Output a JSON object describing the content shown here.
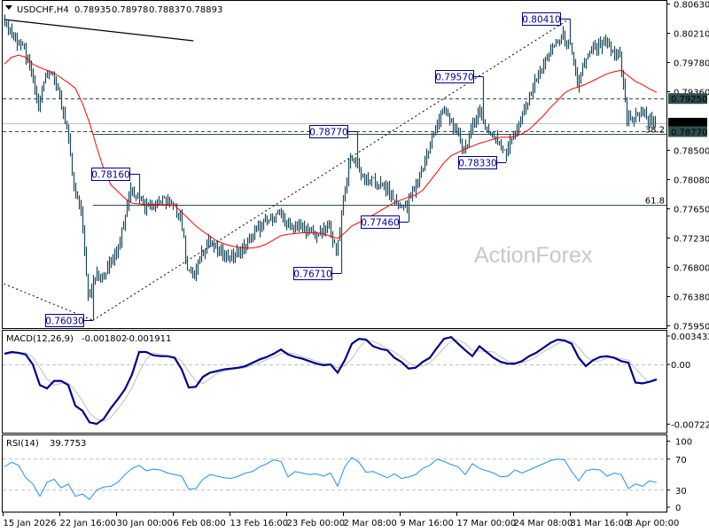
{
  "header": {
    "menu_icon": "triangle-down-icon",
    "symbol_timeframe": "USDCHF,H4",
    "open": "0.78935",
    "high": "0.78978",
    "low": "0.78837",
    "close": "0.78893"
  },
  "watermark": "ActionForex",
  "x_axis": {
    "ticks": [
      {
        "label": "15 Jan 2026",
        "date": "2026-01-15T00:00"
      },
      {
        "label": "22 Jan 16:00",
        "date": "2026-01-22T16:00"
      },
      {
        "label": "30 Jan 00:00",
        "date": "2026-01-30T00:00"
      },
      {
        "label": "6 Feb 08:00",
        "date": "2026-02-06T08:00"
      },
      {
        "label": "13 Feb 16:00",
        "date": "2026-02-13T16:00"
      },
      {
        "label": "23 Feb 00:00",
        "date": "2026-02-23T00:00"
      },
      {
        "label": "2 Mar 08:00",
        "date": "2026-03-02T08:00"
      },
      {
        "label": "9 Mar 16:00",
        "date": "2026-03-09T16:00"
      },
      {
        "label": "17 Mar 00:00",
        "date": "2026-03-17T00:00"
      },
      {
        "label": "24 Mar 08:00",
        "date": "2026-03-24T08:00"
      },
      {
        "label": "31 Mar 16:00",
        "date": "2026-03-31T16:00"
      },
      {
        "label": "8 Apr 00:00",
        "date": "2026-04-08T00:00"
      }
    ]
  },
  "chart_data": [
    {
      "type": "line",
      "title": "USDCHF,H4",
      "style": "ohlc-bars",
      "bar_color": "#1b4a5e",
      "ma_color": "#ff0000",
      "ylim": [
        0.7595,
        0.8063
      ],
      "y_ticks": [
        "0.80630",
        "0.80210",
        "0.79780",
        "0.79360",
        "0.78500",
        "0.78080",
        "0.77650",
        "0.77230",
        "0.76800",
        "0.76380",
        "0.75950"
      ],
      "price_badges": [
        {
          "label": "0.79250",
          "value": 0.7925,
          "color": "#2f4f4f"
        },
        {
          "label": "0.78893",
          "value": 0.78893,
          "color": "#000000"
        },
        {
          "label": "0.78770",
          "value": 0.7877,
          "color": "#2f4f4f"
        }
      ],
      "close_series": [
        0.804,
        0.8025,
        0.8008,
        0.7995,
        0.796,
        0.791,
        0.796,
        0.7965,
        0.7925,
        0.7885,
        0.779,
        0.7765,
        0.764,
        0.767,
        0.766,
        0.769,
        0.77,
        0.7745,
        0.7795,
        0.7785,
        0.777,
        0.7772,
        0.7775,
        0.7778,
        0.777,
        0.7755,
        0.768,
        0.7665,
        0.77,
        0.772,
        0.7705,
        0.77,
        0.7695,
        0.77,
        0.771,
        0.7725,
        0.7735,
        0.7745,
        0.7752,
        0.7758,
        0.7745,
        0.774,
        0.7738,
        0.7735,
        0.7728,
        0.773,
        0.774,
        0.77,
        0.778,
        0.784,
        0.783,
        0.7805,
        0.7805,
        0.78,
        0.7795,
        0.778,
        0.7765,
        0.7775,
        0.779,
        0.782,
        0.785,
        0.7885,
        0.7905,
        0.7895,
        0.7875,
        0.785,
        0.7875,
        0.791,
        0.7885,
        0.7872,
        0.786,
        0.785,
        0.787,
        0.789,
        0.792,
        0.795,
        0.7968,
        0.799,
        0.8005,
        0.8015,
        0.8,
        0.7945,
        0.7975,
        0.7995,
        0.8,
        0.8005,
        0.799,
        0.799,
        0.7895,
        0.7895,
        0.7905,
        0.7895,
        0.7889
      ],
      "moving_average": [
        0.7975,
        0.7985,
        0.7988,
        0.7985,
        0.7975,
        0.797,
        0.7966,
        0.7962,
        0.7955,
        0.7948,
        0.794,
        0.7918,
        0.789,
        0.7855,
        0.7823,
        0.78,
        0.779,
        0.778,
        0.7773,
        0.7772,
        0.7771,
        0.7771,
        0.7771,
        0.7771,
        0.777,
        0.776,
        0.775,
        0.774,
        0.7732,
        0.7725,
        0.7718,
        0.7714,
        0.7711,
        0.7709,
        0.7708,
        0.7708,
        0.771,
        0.7714,
        0.772,
        0.7726,
        0.7728,
        0.7729,
        0.773,
        0.773,
        0.773,
        0.7729,
        0.7725,
        0.7722,
        0.773,
        0.774,
        0.7745,
        0.775,
        0.7756,
        0.7762,
        0.7768,
        0.7774,
        0.7778,
        0.7782,
        0.7785,
        0.7792,
        0.7805,
        0.7818,
        0.7832,
        0.7842,
        0.7847,
        0.7852,
        0.7856,
        0.786,
        0.7863,
        0.7866,
        0.7869,
        0.7869,
        0.787,
        0.7874,
        0.788,
        0.789,
        0.79,
        0.7912,
        0.7922,
        0.7933,
        0.7939,
        0.7942,
        0.7946,
        0.7951,
        0.7956,
        0.7961,
        0.7964,
        0.7966,
        0.7958,
        0.795,
        0.7945,
        0.7939,
        0.7934
      ],
      "annotations": [
        {
          "label": "0.80410",
          "value": 0.8041,
          "date": "2026-03-31T16:00",
          "kind": "high",
          "side": "left"
        },
        {
          "label": "0.79570",
          "value": 0.7957,
          "date": "2026-03-20T08:00",
          "kind": "high",
          "side": "left"
        },
        {
          "label": "0.78770",
          "value": 0.7877,
          "date": "2026-03-04T04:00",
          "kind": "high",
          "side": "left"
        },
        {
          "label": "0.78160",
          "value": 0.7816,
          "date": "2026-02-02T00:00",
          "kind": "high",
          "side": "left"
        },
        {
          "label": "0.77460",
          "value": 0.7746,
          "date": "2026-03-10T20:00",
          "kind": "low",
          "side": "left"
        },
        {
          "label": "0.78330",
          "value": 0.7833,
          "date": "2026-03-23T12:00",
          "kind": "low",
          "side": "left"
        },
        {
          "label": "0.76710",
          "value": 0.7671,
          "date": "2026-03-02T00:00",
          "kind": "low",
          "side": "left"
        },
        {
          "label": "0.76030",
          "value": 0.7603,
          "date": "2026-01-27T00:00",
          "kind": "low",
          "side": "left"
        }
      ],
      "horizontal_levels": [
        {
          "value": 0.7925,
          "style": "dashed"
        },
        {
          "value": 0.7877,
          "style": "dashed"
        },
        {
          "value": 0.78893,
          "style": "bid"
        }
      ],
      "fibonacci": {
        "from_date": "2026-01-27T00:00",
        "levels": [
          {
            "label": "38.2",
            "value": 0.78737
          },
          {
            "label": "61.8",
            "value": 0.77703
          }
        ]
      },
      "trend_lines": [
        {
          "style": "solid",
          "from": {
            "date": "2026-01-15T04:00",
            "value": 0.80398
          },
          "to": {
            "date": "2026-02-09T00:00",
            "value": 0.80089
          }
        },
        {
          "style": "dotted",
          "from": {
            "date": "2026-01-15T04:00",
            "value": 0.7656
          },
          "to": {
            "date": "2026-01-27T00:00",
            "value": 0.7603
          }
        },
        {
          "style": "dotted",
          "from": {
            "date": "2026-01-27T00:00",
            "value": 0.7603
          },
          "to": {
            "date": "2026-03-31T16:00",
            "value": 0.8041
          }
        }
      ]
    },
    {
      "type": "line",
      "title": "MACD(12,26,9)",
      "main_value": "-0.001802",
      "signal_value": "-0.001911",
      "y_ticks": [
        "0.003432",
        "0.00",
        "-0.007223"
      ],
      "ylim": [
        -0.007223,
        0.003432
      ],
      "main_color": "#00008b",
      "signal_color": "#c0c0c0",
      "series": [
        {
          "values": [
            0.0013,
            0.0015,
            0.0014,
            0.0012,
            0.0,
            -0.0025,
            -0.0029,
            -0.002,
            -0.002,
            -0.0025,
            -0.005,
            -0.0056,
            -0.007,
            -0.0072,
            -0.0066,
            -0.0053,
            -0.0042,
            -0.003,
            -0.0012,
            0.0015,
            0.0015,
            0.0011,
            0.001,
            0.001,
            0.0008,
            -0.0006,
            -0.0028,
            -0.0027,
            -0.0015,
            -0.001,
            -0.0008,
            -0.0006,
            -0.0005,
            -0.0004,
            -0.0002,
            0.0002,
            0.0006,
            0.0009,
            0.0013,
            0.0018,
            0.0012,
            0.0009,
            0.0007,
            0.0004,
            0.0001,
            -0.0001,
            0.0,
            -0.001,
            0.0005,
            0.0025,
            0.0031,
            0.003,
            0.0022,
            0.0019,
            0.0017,
            0.0008,
            0.0003,
            -0.0005,
            -0.0004,
            0.0003,
            0.0008,
            0.002,
            0.0031,
            0.0033,
            0.0025,
            0.0017,
            0.001,
            0.0022,
            0.0015,
            0.0008,
            0.0003,
            0.0001,
            0.0001,
            0.0004,
            0.001,
            0.0014,
            0.002,
            0.0026,
            0.003,
            0.0029,
            0.0025,
            0.0008,
            -0.0002,
            0.0005,
            0.0009,
            0.001,
            0.0008,
            0.0004,
            0.0002,
            -0.0022,
            -0.0023,
            -0.0021,
            -0.0018
          ]
        },
        {
          "values": [
            0.0012,
            0.0013,
            0.0014,
            0.0014,
            0.0009,
            -0.0004,
            -0.0018,
            -0.0025,
            -0.0023,
            -0.0022,
            -0.0032,
            -0.0044,
            -0.0059,
            -0.0066,
            -0.0069,
            -0.0064,
            -0.0054,
            -0.0042,
            -0.0028,
            -0.0009,
            0.0006,
            0.0014,
            0.0012,
            0.001,
            0.0009,
            0.0004,
            -0.0009,
            -0.002,
            -0.0023,
            -0.0017,
            -0.0011,
            -0.0008,
            -0.0006,
            -0.0005,
            -0.0004,
            -0.0001,
            0.0002,
            0.0006,
            0.0009,
            0.0013,
            0.0014,
            0.0013,
            0.0009,
            0.0007,
            0.0004,
            0.0001,
            0.0,
            -0.0004,
            -0.0002,
            0.0007,
            0.002,
            0.0029,
            0.0028,
            0.0024,
            0.0019,
            0.0015,
            0.0009,
            0.0002,
            -0.0002,
            -0.0002,
            0.0002,
            0.001,
            0.002,
            0.0028,
            0.003,
            0.0025,
            0.0017,
            0.0016,
            0.0016,
            0.0015,
            0.0009,
            0.0004,
            0.0002,
            0.0002,
            0.0005,
            0.0009,
            0.0015,
            0.002,
            0.0025,
            0.0028,
            0.0028,
            0.0021,
            0.001,
            0.0004,
            0.0004,
            0.0008,
            0.0009,
            0.0007,
            0.0005,
            -0.0005,
            -0.0014,
            -0.0022,
            -0.0019
          ]
        }
      ]
    },
    {
      "type": "line",
      "title": "RSI(14)",
      "current_value": "39.7753",
      "y_ticks": [
        "100",
        "70",
        "30",
        "0"
      ],
      "ylim": [
        0,
        100
      ],
      "levels": [
        70,
        30
      ],
      "color": "#1e90ff",
      "values": [
        60,
        66,
        62,
        46,
        38,
        22,
        40,
        44,
        33,
        38,
        22,
        25,
        18,
        30,
        34,
        35,
        40,
        50,
        58,
        62,
        55,
        57,
        56,
        52,
        50,
        48,
        31,
        32,
        44,
        50,
        48,
        46,
        45,
        48,
        52,
        54,
        60,
        64,
        69,
        67,
        47,
        54,
        52,
        50,
        51,
        48,
        52,
        35,
        60,
        72,
        66,
        53,
        54,
        50,
        46,
        51,
        45,
        47,
        50,
        58,
        62,
        70,
        67,
        63,
        60,
        50,
        64,
        58,
        55,
        52,
        47,
        48,
        56,
        52,
        56,
        60,
        64,
        68,
        70,
        69,
        54,
        42,
        55,
        57,
        56,
        48,
        52,
        50,
        32,
        38,
        35,
        42,
        39.8
      ]
    }
  ]
}
